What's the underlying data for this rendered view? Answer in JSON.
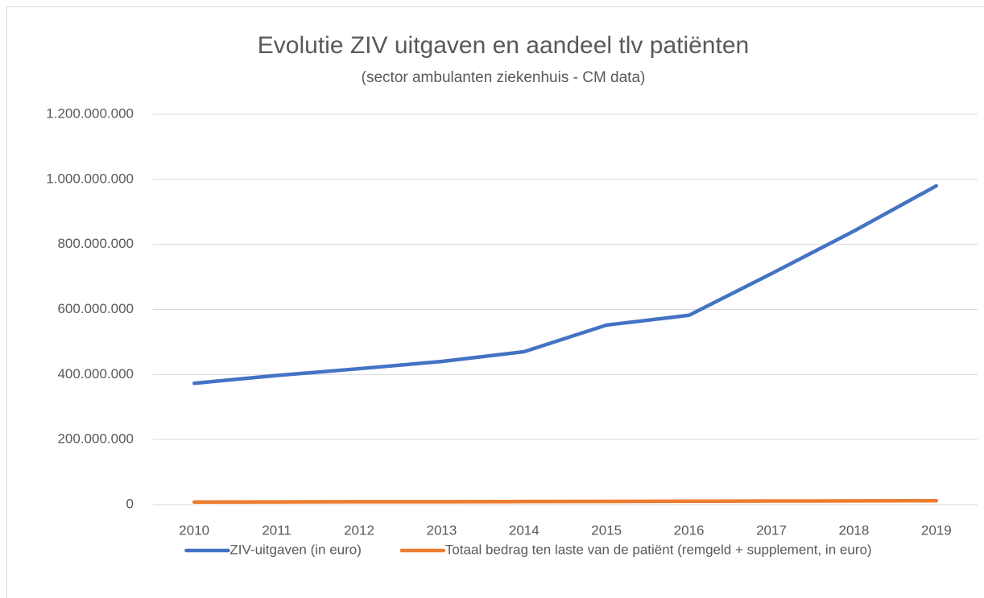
{
  "chart_data": {
    "type": "line",
    "title": "Evolutie ZIV uitgaven en aandeel tlv patiënten",
    "subtitle": "(sector ambulanten ziekenhuis - CM data)",
    "categories": [
      "2010",
      "2011",
      "2012",
      "2013",
      "2014",
      "2015",
      "2016",
      "2017",
      "2018",
      "2019"
    ],
    "series": [
      {
        "name": "ZIV-uitgaven (in euro)",
        "color": "#4472c4",
        "values": [
          373000000,
          397000000,
          418000000,
          440000000,
          470000000,
          552000000,
          582000000,
          710000000,
          841000000,
          980000000
        ]
      },
      {
        "name": "Totaal bedrag ten laste van de patiënt (remgeld + supplement, in euro)",
        "color": "#ed7d31",
        "values": [
          8000000,
          8500000,
          9000000,
          9000000,
          9500000,
          10000000,
          10500000,
          11000000,
          11500000,
          12000000
        ]
      }
    ],
    "ylim": [
      0,
      1200000000
    ],
    "yticks": [
      0,
      {
        "value": 200000000,
        "label": "200.000.000"
      },
      {
        "value": 400000000,
        "label": "400.000.000"
      },
      {
        "value": 600000000,
        "label": "600.000.000"
      },
      {
        "value": 800000000,
        "label": "800.000.000"
      },
      {
        "value": 1000000000,
        "label": "1.000.000.000"
      },
      {
        "value": 1200000000,
        "label": "1.200.000.000"
      }
    ],
    "grid": true,
    "legend": "bottom"
  }
}
